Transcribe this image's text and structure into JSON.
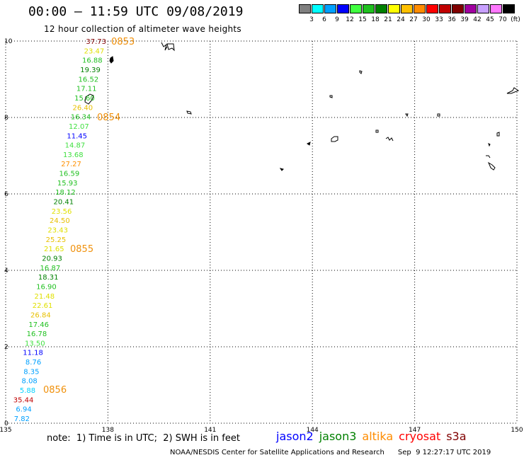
{
  "title": "00:00 – 11:59 UTC 09/08/2019",
  "subtitle": "12 hour collection of altimeter wave heights",
  "color_scale": {
    "colors": [
      "#808080",
      "#00ffff",
      "#00a0ff",
      "#0000ff",
      "#40ff40",
      "#20c020",
      "#008000",
      "#ffff00",
      "#ffc000",
      "#ff8c00",
      "#ff0000",
      "#c00000",
      "#800000",
      "#a000a0",
      "#c8a0ff",
      "#ff78ff",
      "#000000"
    ],
    "labels": [
      "3",
      "6",
      "9",
      "12",
      "15",
      "18",
      "21",
      "24",
      "27",
      "30",
      "33",
      "36",
      "39",
      "42",
      "45",
      "70",
      "(ft)"
    ]
  },
  "map": {
    "lon_ticks": [
      "135",
      "138",
      "141",
      "144",
      "147",
      "150"
    ],
    "lat_ticks": [
      "0",
      "2",
      "4",
      "6",
      "8",
      "10"
    ],
    "lon_range": [
      135,
      150
    ],
    "lat_range": [
      0,
      10
    ],
    "grid": "dotted"
  },
  "measurements": [
    {
      "v": "37.73",
      "c": "#800000"
    },
    {
      "v": "23.47",
      "c": "#e0e000"
    },
    {
      "v": "16.88",
      "c": "#20c020"
    },
    {
      "v": "19.39",
      "c": "#008000"
    },
    {
      "v": "16.52",
      "c": "#20c020"
    },
    {
      "v": "17.11",
      "c": "#20c020"
    },
    {
      "v": "15.60",
      "c": "#20c020"
    },
    {
      "v": "26.40",
      "c": "#e8c000"
    },
    {
      "v": "16.34",
      "c": "#20c020"
    },
    {
      "v": "12.07",
      "c": "#40e040"
    },
    {
      "v": "11.45",
      "c": "#0000ff"
    },
    {
      "v": "14.87",
      "c": "#40e040"
    },
    {
      "v": "13.68",
      "c": "#40e040"
    },
    {
      "v": "27.27",
      "c": "#ff9000"
    },
    {
      "v": "16.59",
      "c": "#20c020"
    },
    {
      "v": "15.93",
      "c": "#20c020"
    },
    {
      "v": "18.12",
      "c": "#20c020"
    },
    {
      "v": "20.41",
      "c": "#008000"
    },
    {
      "v": "23.56",
      "c": "#e0e000"
    },
    {
      "v": "24.50",
      "c": "#e8c000"
    },
    {
      "v": "23.43",
      "c": "#e0e000"
    },
    {
      "v": "25.25",
      "c": "#e8c000"
    },
    {
      "v": "21.65",
      "c": "#e0e000"
    },
    {
      "v": "20.93",
      "c": "#008000"
    },
    {
      "v": "16.87",
      "c": "#20c020"
    },
    {
      "v": "18.31",
      "c": "#008000"
    },
    {
      "v": "16.90",
      "c": "#20c020"
    },
    {
      "v": "21.48",
      "c": "#e0e000"
    },
    {
      "v": "22.61",
      "c": "#e0e000"
    },
    {
      "v": "26.84",
      "c": "#e8c000"
    },
    {
      "v": "17.46",
      "c": "#20c020"
    },
    {
      "v": "16.78",
      "c": "#20c020"
    },
    {
      "v": "13.50",
      "c": "#40e040"
    },
    {
      "v": "11.18",
      "c": "#0000ff"
    },
    {
      "v": "8.76",
      "c": "#00a0ff"
    },
    {
      "v": "8.35",
      "c": "#00a0ff"
    },
    {
      "v": "8.08",
      "c": "#00a0ff"
    },
    {
      "v": "5.88",
      "c": "#00d0ff"
    },
    {
      "v": "35.44",
      "c": "#c00000"
    },
    {
      "v": "6.94",
      "c": "#00a0ff"
    },
    {
      "v": "7.82",
      "c": "#00a0ff"
    }
  ],
  "time_labels": [
    "0853",
    "0854",
    "0855",
    "0856"
  ],
  "note": "note:  1) Time is in UTC;  2) SWH is in feet",
  "legend": [
    {
      "name": "jason2",
      "color": "#0000ff"
    },
    {
      "name": "jason3",
      "color": "#008000"
    },
    {
      "name": "altika",
      "color": "#ff8c00"
    },
    {
      "name": "cryosat",
      "color": "#ff0000"
    },
    {
      "name": "s3a",
      "color": "#800000"
    }
  ],
  "credit": "NOAA/NESDIS Center for Satellite Applications and Research      Sep  9 12:27:17 UTC 2019"
}
